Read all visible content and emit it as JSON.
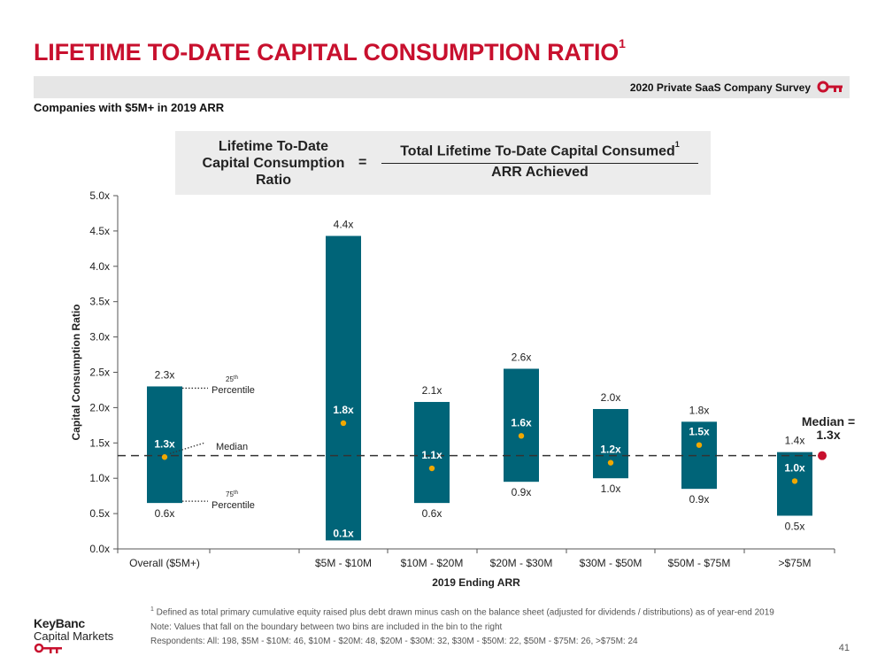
{
  "header": {
    "title": "LIFETIME TO-DATE CAPITAL CONSUMPTION RATIO",
    "title_sup": "1",
    "survey": "2020 Private SaaS Company Survey",
    "subtitle": "Companies with $5M+ in 2019 ARR"
  },
  "formula": {
    "left_line1": "Lifetime To-Date",
    "left_line2": "Capital Consumption",
    "left_line3": "Ratio",
    "equals": "=",
    "numerator": "Total Lifetime To-Date Capital Consumed",
    "numerator_sup": "1",
    "denominator": "ARR Achieved"
  },
  "chart_data": {
    "type": "range-bar",
    "ylabel": "Capital Consumption Ratio",
    "xlabel": "2019 Ending ARR",
    "ylim": [
      0,
      5
    ],
    "yticks": [
      "0.0x",
      "0.5x",
      "1.0x",
      "1.5x",
      "2.0x",
      "2.5x",
      "3.0x",
      "3.5x",
      "4.0x",
      "4.5x",
      "5.0x"
    ],
    "categories": [
      "Overall ($5M+)",
      "$5M - $10M",
      "$10M - $20M",
      "$20M - $30M",
      "$30M - $50M",
      "$50M - $75M",
      ">$75M"
    ],
    "series": [
      {
        "name": "75th Percentile",
        "values": [
          0.65,
          0.12,
          0.65,
          0.95,
          1.0,
          0.85,
          0.47
        ],
        "labels": [
          "0.6x",
          "0.1x",
          "0.6x",
          "0.9x",
          "1.0x",
          "0.9x",
          "0.5x"
        ]
      },
      {
        "name": "25th Percentile",
        "values": [
          2.3,
          4.43,
          2.08,
          2.55,
          1.98,
          1.8,
          1.37
        ],
        "labels": [
          "2.3x",
          "4.4x",
          "2.1x",
          "2.6x",
          "2.0x",
          "1.8x",
          "1.4x"
        ]
      },
      {
        "name": "Median",
        "values": [
          1.3,
          1.78,
          1.14,
          1.6,
          1.22,
          1.47,
          0.96
        ],
        "labels": [
          "1.3x",
          "1.8x",
          "1.1x",
          "1.6x",
          "1.2x",
          "1.5x",
          "1.0x"
        ]
      }
    ],
    "overall_median": 1.32,
    "overall_median_label_1": "Median =",
    "overall_median_label_2": "1.3x",
    "annotations": {
      "p25": "25",
      "p25_sup": "th",
      "p25_word": "Percentile",
      "median": "Median",
      "p75": "75",
      "p75_sup": "th",
      "p75_word": "Percentile"
    },
    "colors": {
      "bar": "#006478",
      "dot": "#f0a800",
      "marker": "#c8102e",
      "line": "#333333"
    }
  },
  "footnotes": {
    "note1_sup": "1",
    "note1": " Defined as total primary cumulative equity raised plus debt drawn minus cash on the balance sheet (adjusted for dividends / distributions) as of year-end 2019",
    "note2": "Note: Values that fall on the boundary between two bins are included in the bin to the right",
    "note3": "Respondents: All: 198, $5M - $10M: 46, $10M - $20M: 48, $20M - $30M: 32, $30M - $50M: 22, $50M - $75M: 26, >$75M: 24"
  },
  "logo": {
    "line1": "KeyBanc",
    "line2": "Capital Markets"
  },
  "page_number": "41"
}
